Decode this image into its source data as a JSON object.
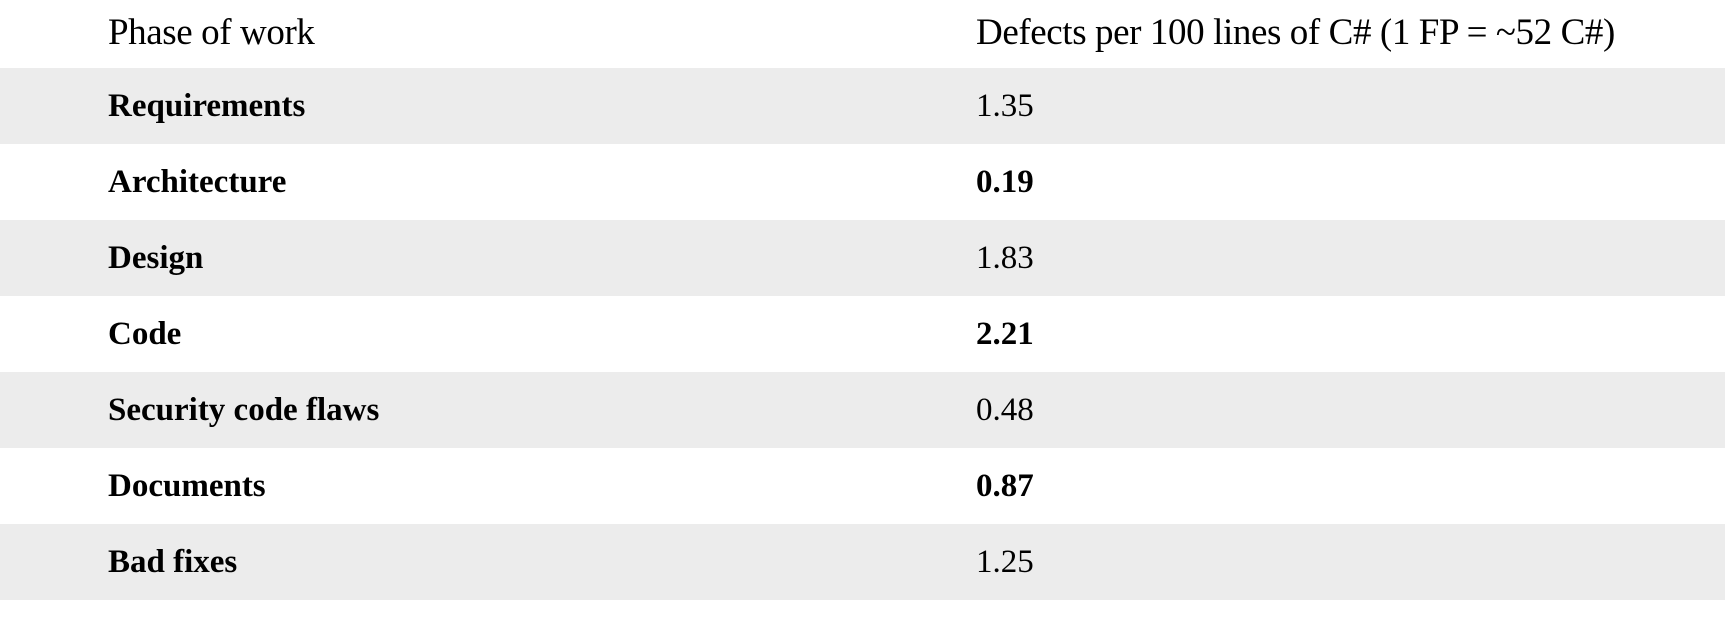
{
  "table": {
    "headers": {
      "phase": "Phase of work",
      "defects": "Defects per 100 lines of C# (1 FP = ~52 C#)"
    },
    "rows": [
      {
        "phase": "Requirements",
        "defects": "1.35"
      },
      {
        "phase": "Architecture",
        "defects": "0.19"
      },
      {
        "phase": "Design",
        "defects": "1.83"
      },
      {
        "phase": "Code",
        "defects": "2.21"
      },
      {
        "phase": "Security code flaws",
        "defects": "0.48"
      },
      {
        "phase": "Documents",
        "defects": "0.87"
      },
      {
        "phase": "Bad fixes",
        "defects": "1.25"
      }
    ]
  }
}
